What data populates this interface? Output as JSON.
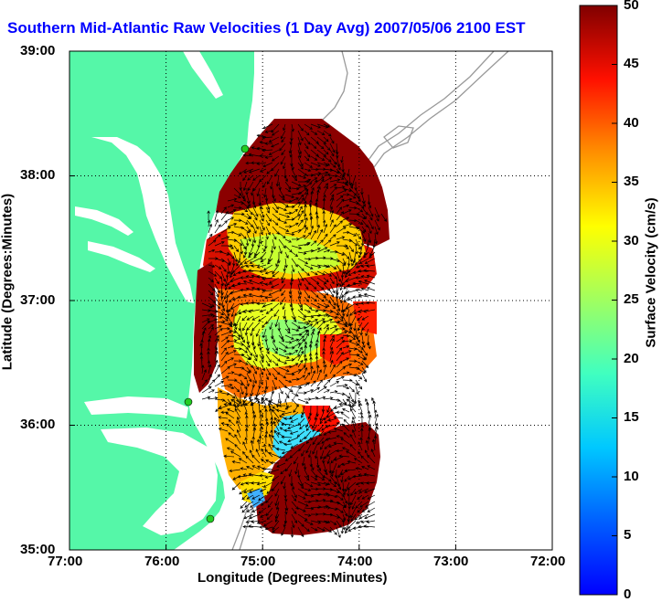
{
  "title": "Southern Mid-Atlantic Raw Velocities (1 Day Avg) 2007/05/06 2100 EST",
  "x_axis": {
    "label": "Longitude (Degrees:Minutes)",
    "ticks": [
      "77:00",
      "76:00",
      "75:00",
      "74:00",
      "73:00",
      "72:00"
    ]
  },
  "y_axis": {
    "label": "Latitude (Degrees:Minutes)",
    "ticks": [
      "39:00",
      "38:00",
      "37:00",
      "36:00",
      "35:00"
    ]
  },
  "colorbar": {
    "label": "Surface Velocity (cm/s)",
    "ticks": [
      "0",
      "5",
      "10",
      "15",
      "20",
      "25",
      "30",
      "35",
      "40",
      "45",
      "50"
    ],
    "range": [
      0,
      50
    ],
    "colormap": "jet"
  },
  "colors": {
    "land": "#55f7a8",
    "title": "#0000ff",
    "bathymetry": "#999999",
    "station": "#22cc22"
  },
  "extent": {
    "lon": [
      -77,
      -72
    ],
    "lat": [
      35,
      39
    ]
  },
  "grid": "dotted",
  "markers": {
    "type": "HF radar stations",
    "count": 3
  }
}
